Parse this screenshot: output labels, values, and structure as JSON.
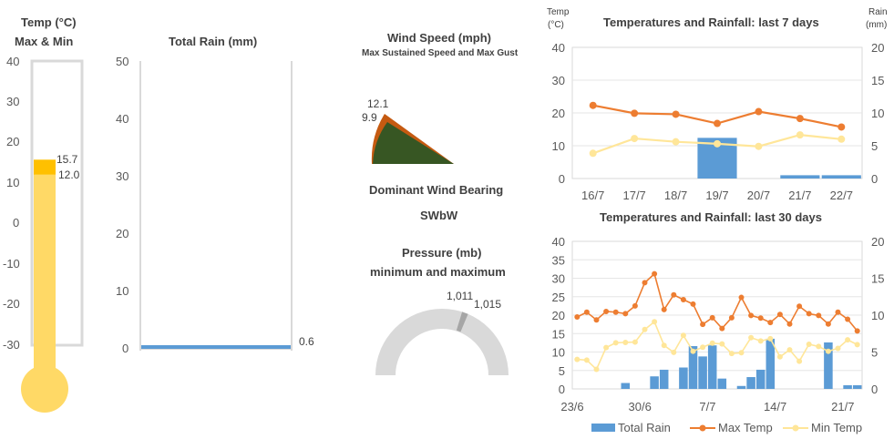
{
  "thermometer": {
    "title_line1": "Temp (°C)",
    "title_line2": "Max & Min",
    "ticks": [
      "40",
      "30",
      "20",
      "10",
      "0",
      "-10",
      "-20",
      "-30"
    ],
    "max_label": "15.7",
    "min_label": "12.0",
    "fill_color": "#FFD966",
    "max_color": "#FFC000"
  },
  "rain_total": {
    "title": "Total Rain (mm)",
    "ticks": [
      "50",
      "40",
      "30",
      "20",
      "10",
      "0"
    ],
    "value_label": "0.6",
    "bar_color": "#5B9BD5"
  },
  "wind": {
    "title": "Wind Speed (mph)",
    "subtitle": "Max Sustained Speed and Max Gust",
    "gust_label": "12.1",
    "sustained_label": "9.9",
    "gust_color": "#C55A11",
    "sustained_color": "#375623",
    "bearing_title": "Dominant Wind Bearing",
    "bearing_value": "SWbW"
  },
  "pressure": {
    "title_line1": "Pressure (mb)",
    "title_line2": "minimum and maximum",
    "min_label": "1,011",
    "max_label": "1,015"
  },
  "chart_data": [
    {
      "type": "bar+line",
      "title": "Temperatures and Rainfall: last 7 days",
      "ylabel_left": "Temp (°C)",
      "ylabel_left_line1": "Temp",
      "ylabel_left_line2": "(°C)",
      "ylabel_right_line1": "Rain",
      "ylabel_right_line2": "(mm)",
      "categories": [
        "16/7",
        "17/7",
        "18/7",
        "19/7",
        "20/7",
        "21/7",
        "22/7"
      ],
      "ylim_left": [
        0,
        40
      ],
      "ylim_right": [
        0,
        20
      ],
      "left_ticks": [
        "0",
        "10",
        "20",
        "30",
        "40"
      ],
      "right_ticks": [
        "0",
        "5",
        "10",
        "15",
        "20"
      ],
      "series": [
        {
          "name": "Total Rain",
          "axis": "right",
          "kind": "bar",
          "color": "#5B9BD5",
          "values": [
            0,
            0,
            0,
            6.2,
            0,
            0.5,
            0.5
          ]
        },
        {
          "name": "Max Temp",
          "axis": "left",
          "kind": "line",
          "color": "#ED7D31",
          "values": [
            22.3,
            19.9,
            19.6,
            16.8,
            20.4,
            18.3,
            15.7
          ]
        },
        {
          "name": "Min Temp",
          "axis": "left",
          "kind": "line",
          "color": "#FFE699",
          "values": [
            7.7,
            12.2,
            11.2,
            10.6,
            9.8,
            13.3,
            12.0
          ]
        }
      ]
    },
    {
      "type": "bar+line",
      "title": "Temperatures and Rainfall: last 30 days",
      "ylim_left": [
        0,
        40
      ],
      "ylim_right": [
        0,
        20
      ],
      "left_ticks": [
        "0",
        "5",
        "10",
        "15",
        "20",
        "25",
        "30",
        "35",
        "40"
      ],
      "right_ticks": [
        "0",
        "5",
        "10",
        "15",
        "20"
      ],
      "x_tick_labels": [
        "23/6",
        "30/6",
        "7/7",
        "14/7",
        "21/7"
      ],
      "x_tick_index": [
        0,
        7,
        14,
        21,
        28
      ],
      "n_points": 30,
      "series": [
        {
          "name": "Total Rain",
          "axis": "right",
          "kind": "bar",
          "color": "#5B9BD5",
          "values": [
            0,
            0,
            0,
            0,
            0,
            0.8,
            0,
            0,
            1.7,
            2.6,
            0,
            2.9,
            5.8,
            4.4,
            5.9,
            1.4,
            0,
            0.4,
            1.6,
            2.6,
            6.8,
            0,
            0,
            0,
            0,
            0,
            6.3,
            0,
            0.5,
            0.5
          ]
        },
        {
          "name": "Max Temp",
          "axis": "left",
          "kind": "line",
          "color": "#ED7D31",
          "values": [
            19.5,
            20.8,
            18.7,
            21.0,
            20.8,
            20.4,
            22.5,
            28.8,
            31.2,
            21.5,
            25.5,
            24.2,
            23.0,
            17.5,
            19.3,
            16.4,
            19.3,
            24.8,
            19.9,
            19.2,
            18.0,
            20.2,
            17.6,
            22.4,
            20.4,
            19.9,
            17.6,
            20.8,
            18.9,
            15.7
          ]
        },
        {
          "name": "Min Temp",
          "axis": "left",
          "kind": "line",
          "color": "#FFE699",
          "values": [
            8.0,
            7.8,
            5.3,
            11.2,
            12.5,
            12.6,
            12.7,
            16.1,
            18.2,
            11.8,
            9.9,
            14.5,
            10.2,
            11.3,
            12.4,
            12.2,
            9.6,
            9.8,
            13.9,
            13.0,
            13.6,
            8.7,
            10.6,
            7.5,
            12.1,
            11.5,
            10.2,
            11.0,
            13.3,
            12.0
          ]
        }
      ],
      "legend": [
        "Total Rain",
        "Max Temp",
        "Min Temp"
      ]
    }
  ]
}
